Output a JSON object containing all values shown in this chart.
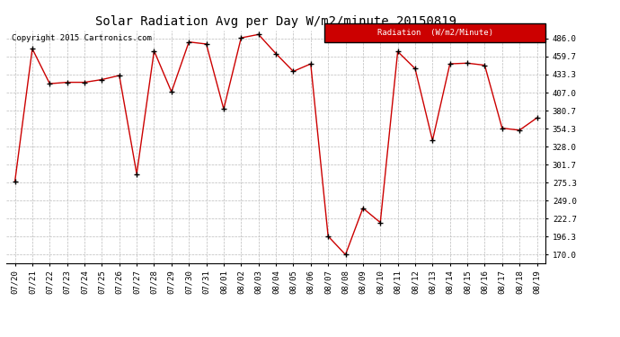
{
  "title": "Solar Radiation Avg per Day W/m2/minute 20150819",
  "copyright": "Copyright 2015 Cartronics.com",
  "legend_label": "Radiation  (W/m2/Minute)",
  "dates": [
    "07/20",
    "07/21",
    "07/22",
    "07/23",
    "07/24",
    "07/25",
    "07/26",
    "07/27",
    "07/28",
    "07/29",
    "07/30",
    "07/31",
    "08/01",
    "08/02",
    "08/03",
    "08/04",
    "08/05",
    "08/06",
    "08/07",
    "08/08",
    "08/09",
    "08/10",
    "08/11",
    "08/12",
    "08/13",
    "08/14",
    "08/15",
    "08/16",
    "08/17",
    "08/18",
    "08/19"
  ],
  "values": [
    277,
    471,
    420,
    422,
    422,
    426,
    432,
    288,
    468,
    408,
    481,
    478,
    383,
    487,
    492,
    464,
    438,
    449,
    197,
    170,
    238,
    217,
    467,
    442,
    337,
    449,
    450,
    447,
    355,
    352,
    370
  ],
  "line_color": "#cc0000",
  "marker_color": "#000000",
  "grid_color": "#bbbbbb",
  "bg_color": "#ffffff",
  "legend_bg": "#cc0000",
  "legend_text_color": "#ffffff",
  "yticks": [
    170.0,
    196.3,
    222.7,
    249.0,
    275.3,
    301.7,
    328.0,
    354.3,
    380.7,
    407.0,
    433.3,
    459.7,
    486.0
  ],
  "ymin": 158.0,
  "ymax": 498.0,
  "title_fontsize": 10,
  "tick_fontsize": 6.5,
  "copyright_fontsize": 6.5,
  "legend_fontsize": 6.5
}
